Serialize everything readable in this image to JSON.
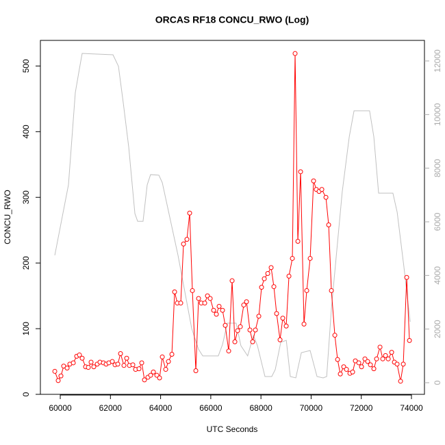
{
  "chart_data": {
    "type": "line",
    "title": "ORCAS RF18 CONCU_RWO (Log)",
    "x_label": "UTC Seconds",
    "y_label": "CONCU_RWO",
    "xlim": [
      59208,
      74518
    ],
    "xticks": [
      60000,
      62000,
      64000,
      66000,
      68000,
      70000,
      72000,
      74000
    ],
    "ylim": [
      0,
      539
    ],
    "yticks": [
      0,
      100,
      200,
      300,
      400,
      500
    ],
    "y2lim": [
      -434,
      12766
    ],
    "y2ticks": [
      0,
      2000,
      4000,
      6000,
      8000,
      10000,
      12000
    ],
    "y2_tick_color": "#aaaaaa",
    "grid": false,
    "series": [
      {
        "color": "#ff0000",
        "marker": "circle",
        "x": [
          59782,
          59918,
          60027,
          60136,
          60273,
          60382,
          60519,
          60655,
          60764,
          60873,
          61010,
          61119,
          61228,
          61337,
          61474,
          61583,
          61719,
          61829,
          61938,
          62074,
          62183,
          62293,
          62402,
          62538,
          62647,
          62757,
          62893,
          63002,
          63139,
          63248,
          63357,
          63494,
          63603,
          63712,
          63848,
          63958,
          64067,
          64203,
          64312,
          64449,
          64558,
          64667,
          64803,
          64913,
          65049,
          65158,
          65267,
          65404,
          65513,
          65622,
          65759,
          65868,
          65977,
          66113,
          66223,
          66332,
          66468,
          66577,
          66714,
          66850,
          66960,
          67069,
          67178,
          67314,
          67424,
          67560,
          67669,
          67778,
          67915,
          68024,
          68133,
          68270,
          68406,
          68515,
          68624,
          68761,
          68870,
          69007,
          69116,
          69252,
          69361,
          69471,
          69580,
          69716,
          69825,
          69962,
          70098,
          70207,
          70317,
          70426,
          70590,
          70699,
          70808,
          70945,
          71054,
          71163,
          71299,
          71409,
          71545,
          71654,
          71763,
          71900,
          72009,
          72145,
          72254,
          72364,
          72500,
          72609,
          72746,
          72855,
          72965,
          73074,
          73210,
          73319,
          73428,
          73565,
          73674,
          73810,
          73920
        ],
        "values": [
          35,
          21,
          28,
          43,
          40,
          46,
          48,
          58,
          60,
          55,
          42,
          41,
          49,
          42,
          46,
          49,
          48,
          46,
          48,
          50,
          45,
          46,
          62,
          44,
          55,
          44,
          45,
          38,
          39,
          48,
          22,
          26,
          29,
          34,
          29,
          25,
          57,
          38,
          50,
          61,
          156,
          139,
          139,
          229,
          236,
          276,
          158,
          36,
          146,
          139,
          139,
          150,
          146,
          128,
          122,
          134,
          128,
          105,
          66,
          173,
          80,
          97,
          103,
          136,
          141,
          98,
          80,
          98,
          119,
          163,
          176,
          184,
          193,
          164,
          123,
          83,
          116,
          104,
          180,
          207,
          519,
          233,
          339,
          107,
          158,
          207,
          325,
          312,
          309,
          312,
          300,
          258,
          158,
          90,
          53,
          31,
          42,
          38,
          32,
          34,
          51,
          48,
          42,
          54,
          50,
          45,
          39,
          54,
          72,
          54,
          59,
          54,
          64,
          49,
          46,
          20,
          46,
          178,
          82
        ]
      },
      {
        "color": "#c0c0c0",
        "axis": "y2",
        "x": [
          59782,
          60327,
          60600,
          60764,
          60873,
          62102,
          62320,
          62511,
          62730,
          62975,
          63084,
          63300,
          63466,
          63600,
          63930,
          64067,
          64694,
          65240,
          65510,
          65680,
          66300,
          66470,
          66660,
          67010,
          67200,
          67470,
          67700,
          67860,
          68160,
          68430,
          68570,
          68790,
          69010,
          69170,
          69390,
          69610,
          69960,
          70235,
          70480,
          70620,
          70810,
          71240,
          71520,
          71710,
          72330,
          72500,
          72690,
          73260,
          73430,
          73700,
          73950
        ],
        "values": [
          4750,
          7380,
          10820,
          11710,
          12280,
          12230,
          11800,
          10440,
          8780,
          6310,
          6020,
          6020,
          7380,
          7760,
          7740,
          7460,
          4750,
          2020,
          1250,
          1000,
          1000,
          1430,
          2220,
          2220,
          1380,
          1000,
          1760,
          1380,
          230,
          230,
          490,
          1510,
          1580,
          230,
          180,
          1120,
          1200,
          230,
          180,
          230,
          2780,
          7120,
          9170,
          10140,
          10140,
          9170,
          7070,
          7070,
          6360,
          4310,
          2270
        ]
      }
    ]
  }
}
